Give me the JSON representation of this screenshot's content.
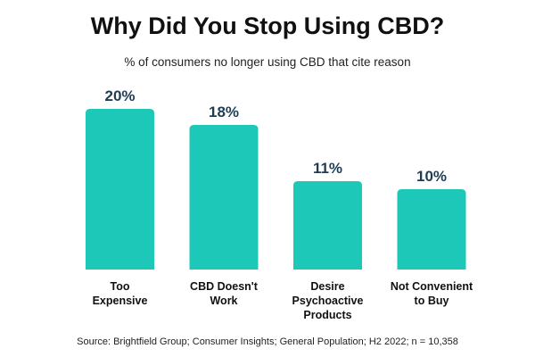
{
  "chart_data": {
    "type": "bar",
    "title": "Why Did You Stop Using CBD?",
    "subtitle": "% of consumers no longer using CBD that cite reason",
    "categories": [
      [
        "Too",
        "Expensive"
      ],
      [
        "CBD Doesn't",
        "Work"
      ],
      [
        "Desire",
        "Psychoactive",
        "Products"
      ],
      [
        "Not Convenient",
        "to Buy"
      ]
    ],
    "values": [
      20,
      18,
      11,
      10
    ],
    "data_labels": [
      "20%",
      "18%",
      "11%",
      "10%"
    ],
    "unit": "%",
    "ylim": [
      0,
      20
    ],
    "grid": false,
    "colors": {
      "bar": "#1EC8B9",
      "data_label": "#1F3D52"
    },
    "source": "Source: Brightfield Group; Consumer Insights; General Population; H2 2022; n = 10,358"
  }
}
